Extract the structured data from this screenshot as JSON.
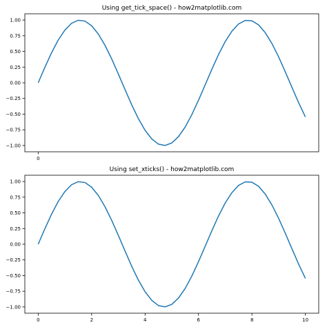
{
  "chart_data": [
    {
      "type": "line",
      "title": "Using get_tick_space() - how2matplotlib.com",
      "xlabel": "",
      "ylabel": "",
      "xlim": [
        -0.5,
        10.5
      ],
      "ylim": [
        -1.1,
        1.1
      ],
      "xticks": [
        0
      ],
      "xtick_labels": [
        "0"
      ],
      "yticks": [
        -1.0,
        -0.75,
        -0.5,
        -0.25,
        0.0,
        0.25,
        0.5,
        0.75,
        1.0
      ],
      "ytick_labels": [
        "−1.00",
        "−0.75",
        "−0.50",
        "−0.25",
        "0.00",
        "0.25",
        "0.50",
        "0.75",
        "1.00"
      ],
      "grid": false,
      "legend": false,
      "line_color": "#1f77b4",
      "series": [
        {
          "x": [
            0,
            0.25,
            0.5,
            0.75,
            1.0,
            1.25,
            1.5,
            1.75,
            2.0,
            2.25,
            2.5,
            2.75,
            3.0,
            3.25,
            3.5,
            3.75,
            4.0,
            4.25,
            4.5,
            4.75,
            5.0,
            5.25,
            5.5,
            5.75,
            6.0,
            6.25,
            6.5,
            6.75,
            7.0,
            7.25,
            7.5,
            7.75,
            8.0,
            8.25,
            8.5,
            8.75,
            9.0,
            9.25,
            9.5,
            9.75,
            10.0
          ],
          "y": [
            0.0,
            0.247,
            0.479,
            0.682,
            0.841,
            0.949,
            0.997,
            0.984,
            0.909,
            0.778,
            0.598,
            0.382,
            0.141,
            -0.108,
            -0.351,
            -0.572,
            -0.757,
            -0.895,
            -0.978,
            -0.999,
            -0.959,
            -0.859,
            -0.706,
            -0.508,
            -0.279,
            -0.033,
            0.215,
            0.45,
            0.657,
            0.823,
            0.938,
            0.994,
            0.989,
            0.923,
            0.798,
            0.625,
            0.412,
            0.174,
            -0.075,
            -0.32,
            -0.544
          ]
        }
      ]
    },
    {
      "type": "line",
      "title": "Using set_xticks() - how2matplotlib.com",
      "xlabel": "",
      "ylabel": "",
      "xlim": [
        -0.5,
        10.5
      ],
      "ylim": [
        -1.1,
        1.1
      ],
      "xticks": [
        0,
        2,
        4,
        6,
        8,
        10
      ],
      "xtick_labels": [
        "0",
        "2",
        "4",
        "6",
        "8",
        "10"
      ],
      "yticks": [
        -1.0,
        -0.75,
        -0.5,
        -0.25,
        0.0,
        0.25,
        0.5,
        0.75,
        1.0
      ],
      "ytick_labels": [
        "−1.00",
        "−0.75",
        "−0.50",
        "−0.25",
        "0.00",
        "0.25",
        "0.50",
        "0.75",
        "1.00"
      ],
      "grid": false,
      "legend": false,
      "line_color": "#1f77b4",
      "series": [
        {
          "x": [
            0,
            0.25,
            0.5,
            0.75,
            1.0,
            1.25,
            1.5,
            1.75,
            2.0,
            2.25,
            2.5,
            2.75,
            3.0,
            3.25,
            3.5,
            3.75,
            4.0,
            4.25,
            4.5,
            4.75,
            5.0,
            5.25,
            5.5,
            5.75,
            6.0,
            6.25,
            6.5,
            6.75,
            7.0,
            7.25,
            7.5,
            7.75,
            8.0,
            8.25,
            8.5,
            8.75,
            9.0,
            9.25,
            9.5,
            9.75,
            10.0
          ],
          "y": [
            0.0,
            0.247,
            0.479,
            0.682,
            0.841,
            0.949,
            0.997,
            0.984,
            0.909,
            0.778,
            0.598,
            0.382,
            0.141,
            -0.108,
            -0.351,
            -0.572,
            -0.757,
            -0.895,
            -0.978,
            -0.999,
            -0.959,
            -0.859,
            -0.706,
            -0.508,
            -0.279,
            -0.033,
            0.215,
            0.45,
            0.657,
            0.823,
            0.938,
            0.994,
            0.989,
            0.923,
            0.798,
            0.625,
            0.412,
            0.174,
            -0.075,
            -0.32,
            -0.544
          ]
        }
      ]
    }
  ]
}
